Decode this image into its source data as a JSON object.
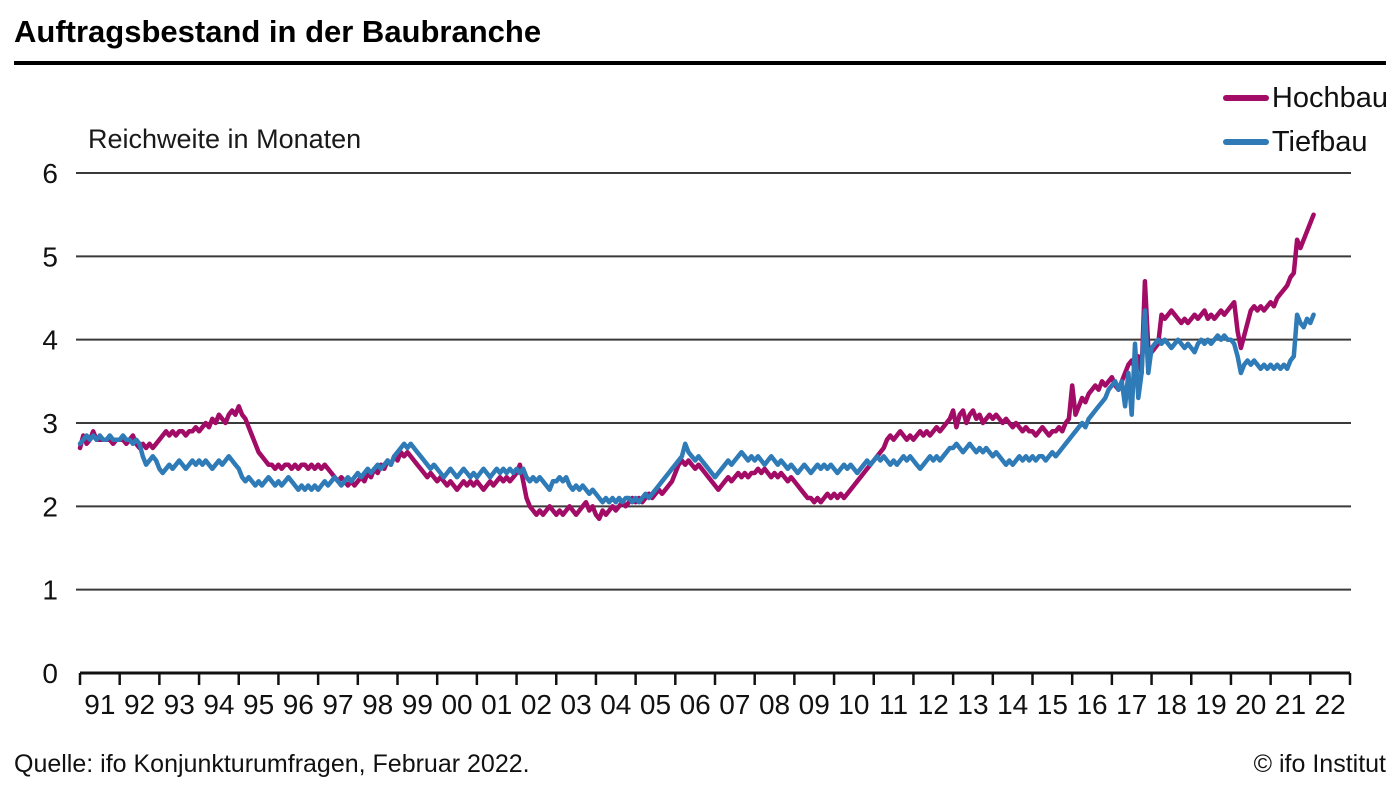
{
  "header": {
    "title": "Auftragsbestand in der Baubranche"
  },
  "subtitle": "Reichweite in Monaten",
  "legend": {
    "items": [
      {
        "label": "Hochbau",
        "color": "#a20b66"
      },
      {
        "label": "Tiefbau",
        "color": "#2e7bb7"
      }
    ]
  },
  "footer": {
    "source": "Quelle: ifo Konjunkturumfragen, Februar 2022.",
    "copyright": "© ifo Institut"
  },
  "colors": {
    "grid": "#3a3a3a",
    "axis": "#111111",
    "text": "#111111",
    "hochbau": "#a20b66",
    "tiefbau": "#2e7bb7"
  },
  "chart_data": {
    "type": "line",
    "title": "Auftragsbestand in der Baubranche",
    "ylabel": "Reichweite in Monaten",
    "xlabel": "",
    "grid": "horizontal",
    "legend_position": "top-right",
    "ylim": [
      0,
      6
    ],
    "y_ticks": [
      0,
      1,
      2,
      3,
      4,
      5,
      6
    ],
    "x_axis_range": [
      1991,
      2023
    ],
    "x_start_year": 1991,
    "frequency": "monthly",
    "last_point": "Februar 2022",
    "x_tick_labels": [
      "91",
      "92",
      "93",
      "94",
      "95",
      "96",
      "97",
      "98",
      "99",
      "00",
      "01",
      "02",
      "03",
      "04",
      "05",
      "06",
      "07",
      "08",
      "09",
      "10",
      "11",
      "12",
      "13",
      "14",
      "15",
      "16",
      "17",
      "18",
      "19",
      "20",
      "21",
      "22"
    ],
    "series": [
      {
        "name": "Hochbau",
        "color": "#a20b66",
        "values": [
          2.7,
          2.85,
          2.75,
          2.8,
          2.9,
          2.8,
          2.8,
          2.8,
          2.8,
          2.8,
          2.75,
          2.8,
          2.8,
          2.8,
          2.75,
          2.8,
          2.85,
          2.75,
          2.7,
          2.75,
          2.7,
          2.75,
          2.7,
          2.75,
          2.8,
          2.85,
          2.9,
          2.85,
          2.9,
          2.85,
          2.9,
          2.9,
          2.85,
          2.9,
          2.9,
          2.95,
          2.9,
          2.95,
          3.0,
          2.95,
          3.05,
          3.0,
          3.1,
          3.05,
          3.0,
          3.1,
          3.15,
          3.1,
          3.2,
          3.1,
          3.05,
          2.95,
          2.85,
          2.75,
          2.65,
          2.6,
          2.55,
          2.5,
          2.5,
          2.45,
          2.5,
          2.45,
          2.5,
          2.5,
          2.45,
          2.5,
          2.45,
          2.5,
          2.5,
          2.45,
          2.5,
          2.45,
          2.5,
          2.45,
          2.5,
          2.45,
          2.4,
          2.35,
          2.3,
          2.35,
          2.3,
          2.25,
          2.3,
          2.25,
          2.3,
          2.35,
          2.3,
          2.4,
          2.35,
          2.45,
          2.4,
          2.5,
          2.45,
          2.55,
          2.5,
          2.6,
          2.55,
          2.65,
          2.6,
          2.65,
          2.6,
          2.55,
          2.5,
          2.45,
          2.4,
          2.35,
          2.4,
          2.35,
          2.3,
          2.35,
          2.3,
          2.25,
          2.3,
          2.25,
          2.2,
          2.25,
          2.3,
          2.25,
          2.3,
          2.25,
          2.3,
          2.25,
          2.2,
          2.25,
          2.3,
          2.25,
          2.3,
          2.35,
          2.3,
          2.35,
          2.3,
          2.35,
          2.4,
          2.5,
          2.3,
          2.1,
          2.0,
          1.95,
          1.9,
          1.95,
          1.9,
          1.95,
          2.0,
          1.95,
          1.9,
          1.95,
          1.9,
          1.95,
          2.0,
          1.95,
          1.9,
          1.95,
          2.0,
          2.05,
          1.95,
          2.0,
          1.9,
          1.85,
          1.95,
          1.9,
          1.95,
          2.0,
          1.95,
          2.0,
          2.05,
          2.0,
          2.05,
          2.1,
          2.05,
          2.1,
          2.05,
          2.1,
          2.15,
          2.1,
          2.15,
          2.2,
          2.15,
          2.2,
          2.25,
          2.3,
          2.4,
          2.5,
          2.55,
          2.5,
          2.55,
          2.5,
          2.45,
          2.5,
          2.45,
          2.4,
          2.35,
          2.3,
          2.25,
          2.2,
          2.25,
          2.3,
          2.35,
          2.3,
          2.35,
          2.4,
          2.35,
          2.4,
          2.35,
          2.4,
          2.4,
          2.45,
          2.4,
          2.45,
          2.4,
          2.35,
          2.4,
          2.35,
          2.4,
          2.35,
          2.3,
          2.35,
          2.3,
          2.25,
          2.2,
          2.15,
          2.1,
          2.1,
          2.05,
          2.1,
          2.05,
          2.1,
          2.15,
          2.1,
          2.15,
          2.1,
          2.15,
          2.1,
          2.15,
          2.2,
          2.25,
          2.3,
          2.35,
          2.4,
          2.45,
          2.5,
          2.55,
          2.6,
          2.65,
          2.7,
          2.8,
          2.85,
          2.8,
          2.85,
          2.9,
          2.85,
          2.8,
          2.85,
          2.8,
          2.85,
          2.9,
          2.85,
          2.9,
          2.85,
          2.9,
          2.95,
          2.9,
          2.95,
          3.0,
          3.05,
          3.15,
          2.95,
          3.1,
          3.15,
          3.0,
          3.1,
          3.15,
          3.05,
          3.1,
          3.0,
          3.05,
          3.1,
          3.05,
          3.1,
          3.05,
          3.0,
          3.05,
          3.0,
          2.95,
          3.0,
          2.95,
          2.9,
          2.95,
          2.9,
          2.9,
          2.85,
          2.9,
          2.95,
          2.9,
          2.85,
          2.9,
          2.9,
          2.95,
          2.9,
          3.0,
          3.05,
          3.45,
          3.1,
          3.2,
          3.3,
          3.25,
          3.35,
          3.4,
          3.45,
          3.4,
          3.5,
          3.45,
          3.5,
          3.55,
          3.45,
          3.4,
          3.5,
          3.6,
          3.7,
          3.75,
          3.65,
          3.8,
          3.6,
          4.7,
          3.9,
          3.85,
          3.9,
          3.95,
          4.3,
          4.25,
          4.3,
          4.35,
          4.3,
          4.25,
          4.2,
          4.25,
          4.2,
          4.25,
          4.3,
          4.25,
          4.3,
          4.35,
          4.25,
          4.3,
          4.25,
          4.3,
          4.35,
          4.3,
          4.35,
          4.4,
          4.45,
          4.1,
          3.9,
          4.05,
          4.2,
          4.35,
          4.4,
          4.35,
          4.4,
          4.35,
          4.4,
          4.45,
          4.4,
          4.5,
          4.55,
          4.6,
          4.65,
          4.75,
          4.8,
          5.2,
          5.1,
          5.2,
          5.3,
          5.4,
          5.5
        ]
      },
      {
        "name": "Tiefbau",
        "color": "#2e7bb7",
        "values": [
          2.75,
          2.8,
          2.85,
          2.8,
          2.85,
          2.8,
          2.85,
          2.8,
          2.8,
          2.85,
          2.8,
          2.8,
          2.8,
          2.85,
          2.8,
          2.8,
          2.75,
          2.8,
          2.75,
          2.6,
          2.5,
          2.55,
          2.6,
          2.55,
          2.45,
          2.4,
          2.45,
          2.5,
          2.45,
          2.5,
          2.55,
          2.5,
          2.45,
          2.5,
          2.55,
          2.5,
          2.55,
          2.5,
          2.55,
          2.5,
          2.45,
          2.5,
          2.55,
          2.5,
          2.55,
          2.6,
          2.55,
          2.5,
          2.45,
          2.35,
          2.3,
          2.35,
          2.3,
          2.25,
          2.3,
          2.25,
          2.3,
          2.35,
          2.3,
          2.25,
          2.3,
          2.25,
          2.3,
          2.35,
          2.3,
          2.25,
          2.2,
          2.25,
          2.2,
          2.25,
          2.2,
          2.25,
          2.2,
          2.25,
          2.3,
          2.25,
          2.3,
          2.35,
          2.3,
          2.25,
          2.3,
          2.35,
          2.3,
          2.35,
          2.4,
          2.35,
          2.4,
          2.45,
          2.4,
          2.45,
          2.5,
          2.45,
          2.5,
          2.55,
          2.5,
          2.6,
          2.65,
          2.7,
          2.75,
          2.7,
          2.75,
          2.7,
          2.65,
          2.6,
          2.55,
          2.5,
          2.45,
          2.5,
          2.45,
          2.4,
          2.35,
          2.4,
          2.45,
          2.4,
          2.35,
          2.4,
          2.45,
          2.4,
          2.35,
          2.4,
          2.35,
          2.4,
          2.45,
          2.4,
          2.35,
          2.4,
          2.45,
          2.4,
          2.45,
          2.4,
          2.45,
          2.4,
          2.45,
          2.4,
          2.45,
          2.35,
          2.3,
          2.35,
          2.3,
          2.35,
          2.3,
          2.25,
          2.2,
          2.3,
          2.3,
          2.35,
          2.3,
          2.35,
          2.25,
          2.2,
          2.25,
          2.2,
          2.25,
          2.2,
          2.15,
          2.2,
          2.15,
          2.1,
          2.05,
          2.1,
          2.05,
          2.1,
          2.05,
          2.1,
          2.05,
          2.1,
          2.1,
          2.05,
          2.1,
          2.05,
          2.1,
          2.15,
          2.1,
          2.15,
          2.2,
          2.25,
          2.3,
          2.35,
          2.4,
          2.45,
          2.5,
          2.55,
          2.6,
          2.75,
          2.65,
          2.6,
          2.55,
          2.6,
          2.55,
          2.5,
          2.45,
          2.4,
          2.35,
          2.4,
          2.45,
          2.5,
          2.55,
          2.5,
          2.55,
          2.6,
          2.65,
          2.6,
          2.55,
          2.6,
          2.55,
          2.6,
          2.55,
          2.5,
          2.55,
          2.6,
          2.55,
          2.5,
          2.55,
          2.5,
          2.45,
          2.5,
          2.45,
          2.4,
          2.45,
          2.5,
          2.45,
          2.4,
          2.45,
          2.5,
          2.45,
          2.5,
          2.45,
          2.5,
          2.45,
          2.4,
          2.45,
          2.5,
          2.45,
          2.5,
          2.45,
          2.4,
          2.45,
          2.5,
          2.55,
          2.5,
          2.55,
          2.6,
          2.55,
          2.6,
          2.55,
          2.5,
          2.55,
          2.5,
          2.55,
          2.6,
          2.55,
          2.6,
          2.55,
          2.5,
          2.45,
          2.5,
          2.55,
          2.6,
          2.55,
          2.6,
          2.55,
          2.6,
          2.65,
          2.7,
          2.7,
          2.75,
          2.7,
          2.65,
          2.7,
          2.75,
          2.7,
          2.65,
          2.7,
          2.65,
          2.7,
          2.65,
          2.6,
          2.65,
          2.6,
          2.55,
          2.5,
          2.55,
          2.5,
          2.55,
          2.6,
          2.55,
          2.6,
          2.55,
          2.6,
          2.55,
          2.6,
          2.6,
          2.55,
          2.6,
          2.65,
          2.6,
          2.65,
          2.7,
          2.75,
          2.8,
          2.85,
          2.9,
          2.95,
          3.0,
          2.95,
          3.05,
          3.1,
          3.15,
          3.2,
          3.25,
          3.3,
          3.4,
          3.45,
          3.5,
          3.4,
          3.5,
          3.2,
          3.6,
          3.1,
          3.95,
          3.3,
          3.6,
          4.35,
          3.6,
          3.9,
          3.95,
          4.0,
          3.95,
          4.0,
          3.95,
          3.9,
          3.95,
          4.0,
          3.95,
          3.9,
          3.95,
          3.9,
          3.85,
          3.95,
          4.0,
          3.95,
          4.0,
          3.95,
          4.0,
          4.05,
          4.0,
          4.05,
          4.0,
          4.0,
          3.95,
          3.8,
          3.6,
          3.7,
          3.75,
          3.7,
          3.75,
          3.7,
          3.65,
          3.7,
          3.65,
          3.7,
          3.65,
          3.7,
          3.65,
          3.7,
          3.65,
          3.75,
          3.8,
          4.3,
          4.2,
          4.15,
          4.25,
          4.2,
          4.3
        ]
      }
    ]
  }
}
